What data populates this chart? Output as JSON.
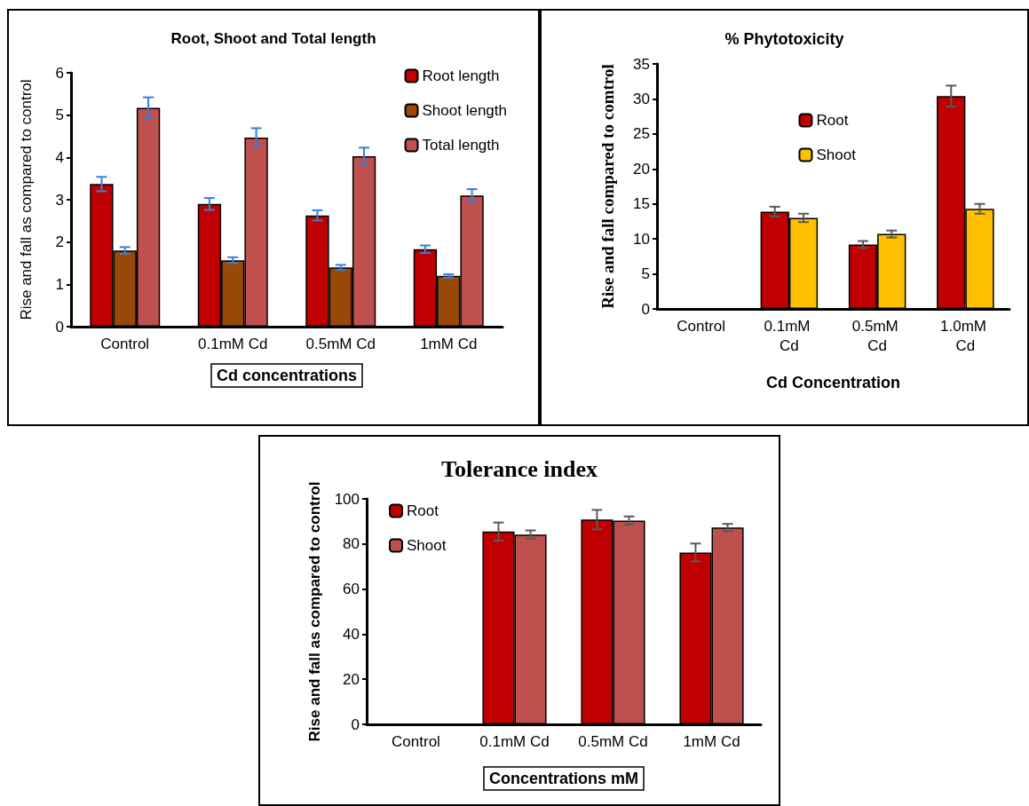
{
  "chart_data": [
    {
      "type": "bar",
      "title": "Root, Shoot and Total length",
      "xlabel": "Cd concentrations",
      "ylabel": "Rise and fall as compared to control",
      "categories": [
        "Control",
        "0.1mM Cd",
        "0.5mM Cd",
        "1mM Cd"
      ],
      "series": [
        {
          "name": "Root length",
          "color": "#c00000",
          "values": [
            3.37,
            2.9,
            2.63,
            1.83
          ],
          "errors": [
            0.17,
            0.14,
            0.12,
            0.09
          ]
        },
        {
          "name": "Shoot length",
          "color": "#984807",
          "values": [
            1.8,
            1.57,
            1.4,
            1.2
          ],
          "errors": [
            0.08,
            0.07,
            0.06,
            0.04
          ]
        },
        {
          "name": "Total length",
          "color": "#c0504d",
          "values": [
            5.17,
            4.47,
            4.03,
            3.1
          ],
          "errors": [
            0.25,
            0.22,
            0.2,
            0.15
          ]
        }
      ],
      "ylim": [
        0,
        6
      ],
      "yticks": [
        0,
        1,
        2,
        3,
        4,
        5,
        6
      ],
      "grid": false,
      "legend": "top right"
    },
    {
      "type": "bar",
      "title": "% Phytotoxicity",
      "xlabel": "Cd Concentration",
      "ylabel": "Rise and fall compared to comtrol",
      "categories": [
        "Control",
        "0.1mM Cd",
        "0.5mM Cd",
        "1.0mM Cd"
      ],
      "series": [
        {
          "name": "Root",
          "color": "#c00000",
          "values": [
            null,
            13.9,
            9.2,
            30.4
          ],
          "errors": [
            null,
            0.7,
            0.5,
            1.5
          ]
        },
        {
          "name": "Shoot",
          "color": "#ffc000",
          "values": [
            null,
            13.0,
            10.7,
            14.3
          ],
          "errors": [
            null,
            0.6,
            0.5,
            0.7
          ]
        }
      ],
      "ylim": [
        0,
        35
      ],
      "yticks": [
        0,
        5,
        10,
        15,
        20,
        25,
        30,
        35
      ],
      "grid": false,
      "legend": "top"
    },
    {
      "type": "bar",
      "title": "Tolerance index",
      "xlabel": "Concentrations mM",
      "ylabel": "Rise and fall as compared to control",
      "categories": [
        "Control",
        "0.1mM Cd",
        "0.5mM Cd",
        "1mM Cd"
      ],
      "series": [
        {
          "name": "Root",
          "color": "#c00000",
          "values": [
            null,
            85.5,
            90.8,
            76.2
          ],
          "errors": [
            null,
            4,
            4.3,
            4
          ]
        },
        {
          "name": "Shoot",
          "color": "#c0504d",
          "values": [
            null,
            84.2,
            90.4,
            87.3
          ],
          "errors": [
            null,
            1.8,
            1.8,
            1.6
          ]
        }
      ],
      "ylim": [
        0,
        100
      ],
      "yticks": [
        0,
        20,
        40,
        60,
        80,
        100
      ],
      "grid": false,
      "legend": "top left"
    }
  ]
}
